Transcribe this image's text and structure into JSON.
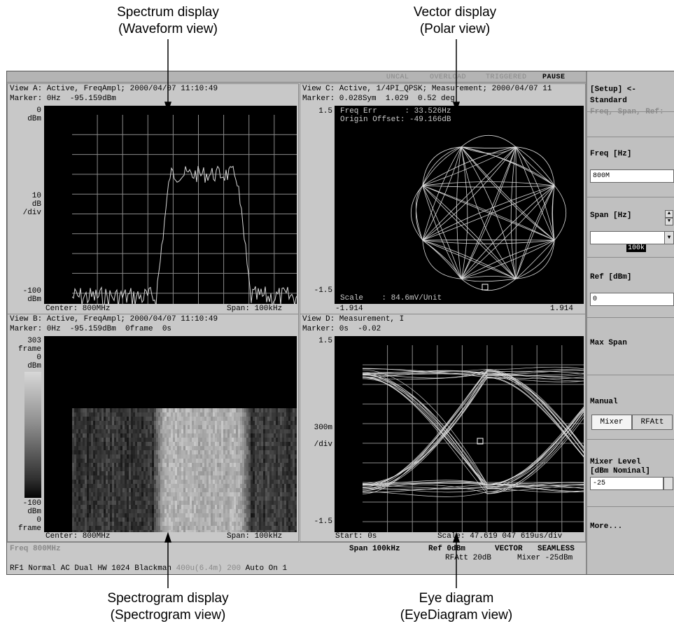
{
  "callouts": {
    "spectrum_line1": "Spectrum display",
    "spectrum_line2": "(Waveform view)",
    "vector_line1": "Vector display",
    "vector_line2": "(Polar view)",
    "spectrogram_line1": "Spectrogram display",
    "spectrogram_line2": "(Spectrogram view)",
    "eye_line1": "Eye diagram",
    "eye_line2": "(EyeDiagram view)"
  },
  "status_bar": {
    "uncal": "UNCAL",
    "overload": "OVERLOAD",
    "triggered": "TRIGGERED",
    "pause": "PAUSE"
  },
  "view_a": {
    "header": "View A: Active, FreqAmpl; 2000/04/07 11:10:49",
    "marker": "Marker: 0Hz  -95.159dBm",
    "y_top": "0",
    "y_top_unit": "dBm",
    "y_div1": "10",
    "y_div2": "dB",
    "y_div3": "/div",
    "y_bottom": "-100",
    "y_bottom_unit": "dBm",
    "center": "Center: 800MHz",
    "span": "Span: 100kHz"
  },
  "view_b": {
    "header": "View B: Active, FreqAmpl; 2000/04/07 11:10:49",
    "marker": "Marker: 0Hz  -95.159dBm  0frame  0s",
    "frame_top": "303",
    "frame_top_unit": "frame",
    "scale_top": "0",
    "scale_top_unit": "dBm",
    "scale_bottom": "-100",
    "scale_bottom_unit": "dBm",
    "frame_bottom": "0",
    "frame_bottom_unit": "frame",
    "center": "Center: 800MHz",
    "span": "Span: 100kHz"
  },
  "view_c": {
    "header": "View C: Active, 1/4PI_QPSK; Measurement; 2000/04/07 11",
    "marker": "Marker: 0.028Sym  1.029  0.52 deg",
    "freq_err": "Freq Err      : 33.526Hz",
    "origin_offset": "Origin Offset: -49.166dB",
    "scale": "Scale    : 84.6mV/Unit",
    "y_top": "1.5",
    "y_bottom": "-1.5",
    "x_left": "-1.914",
    "x_right": "1.914"
  },
  "view_d": {
    "header": "View D: Measurement, I",
    "marker": "Marker: 0s  -0.02",
    "y_top": "1.5",
    "y_div1": "300m",
    "y_div2": "/div",
    "y_bottom": "-1.5",
    "start": "Start: 0s",
    "scale": "Scale: 47.619 047 619us/div"
  },
  "side_panel": {
    "setup": "[Setup] <-",
    "standard": "Standard",
    "freq_span_ref": "Freq, Span, Ref:",
    "freq_label": "Freq [Hz]",
    "freq_value": "800M",
    "span_label": "Span [Hz]",
    "span_value": "100k",
    "ref_label": "Ref [dBm]",
    "ref_value": "0",
    "max_span": "Max Span",
    "manual": "Manual",
    "mixer_btn": "Mixer",
    "rfatt_btn": "RFAtt",
    "mixer_level1": "Mixer Level",
    "mixer_level2": "[dBm Nominal]",
    "mixer_level_value": "-25",
    "more": "More..."
  },
  "bottom_bar": {
    "freq": "Freq 800MHz",
    "span": "Span 100kHz",
    "ref": "Ref 0dBm",
    "vector": "VECTOR",
    "seamless": "SEAMLESS",
    "rfatt": "RFAtt 20dB",
    "mixer": "Mixer -25dBm",
    "line_main": "RF1 Normal AC Dual HW 1024 Blackman ",
    "line_dim1": "400u(6.4m)",
    "line_mid": " ",
    "line_dim2": "200",
    "line_end": " Auto On 1"
  },
  "colors": {
    "screen_bg": "#c8c8c8",
    "plot_bg": "#000000",
    "trace": "#d8d8d8",
    "grid": "#8a8a8a"
  }
}
